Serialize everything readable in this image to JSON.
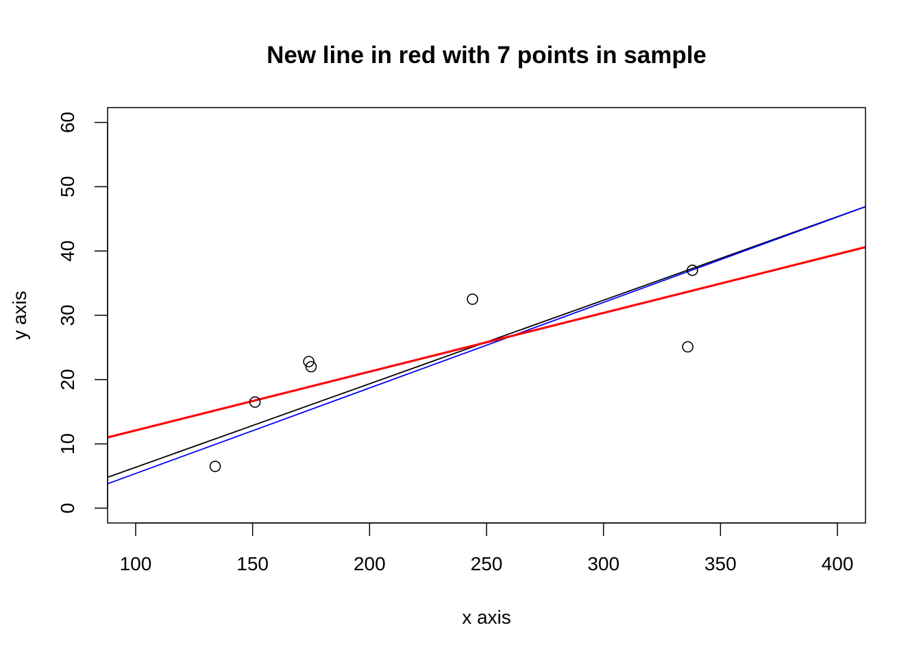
{
  "chart_data": {
    "type": "scatter",
    "title": "New line in red with  7  points in sample",
    "xlabel": "x axis",
    "ylabel": "y axis",
    "xlim": [
      88,
      412
    ],
    "ylim": [
      -2.3,
      62.3
    ],
    "xticks": [
      100,
      150,
      200,
      250,
      300,
      350,
      400
    ],
    "yticks": [
      0,
      10,
      20,
      30,
      40,
      50,
      60
    ],
    "grid": false,
    "points": [
      {
        "x": 134,
        "y": 6.5
      },
      {
        "x": 151,
        "y": 16.5
      },
      {
        "x": 174,
        "y": 22.8
      },
      {
        "x": 175,
        "y": 22.0
      },
      {
        "x": 244,
        "y": 32.5
      },
      {
        "x": 336,
        "y": 25.1
      },
      {
        "x": 338,
        "y": 37.0
      }
    ],
    "lines": [
      {
        "color": "#000000",
        "x": [
          88,
          412
        ],
        "y": [
          4.8,
          46.9
        ]
      },
      {
        "color": "#0000ff",
        "x": [
          88,
          412
        ],
        "y": [
          3.8,
          46.9
        ]
      },
      {
        "color": "#ff0000",
        "x": [
          88,
          412
        ],
        "y": [
          11.0,
          40.6
        ]
      }
    ]
  }
}
